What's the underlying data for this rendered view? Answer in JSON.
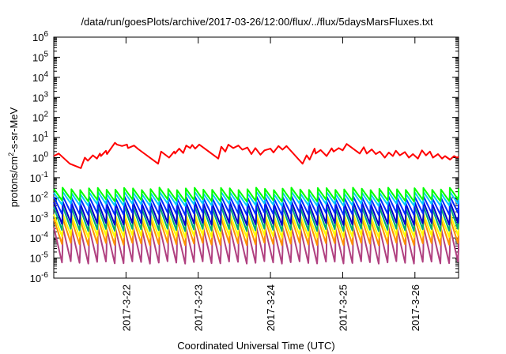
{
  "chart_data": {
    "type": "line",
    "title": "/data/run/goesPlots/archive/2017-03-26/12:00/flux/../flux/5daysMarsFluxes.txt",
    "xlabel": "Coordinated Universal Time (UTC)",
    "ylabel_main": "protons/cm",
    "ylabel_sup": "2",
    "ylabel_rest": "-s-sr-MeV",
    "yscale": "log",
    "ylim": [
      1e-06,
      1000000.0
    ],
    "xlim": [
      "2017-03-21 00:00",
      "2017-03-26 14:30"
    ],
    "x_ticks": [
      {
        "label": "2017-3-22",
        "x": "2017-03-22 00:00"
      },
      {
        "label": "2017-3-23",
        "x": "2017-03-23 00:00"
      },
      {
        "label": "2017-3-24",
        "x": "2017-03-24 00:00"
      },
      {
        "label": "2017-3-25",
        "x": "2017-03-25 00:00"
      },
      {
        "label": "2017-3-26",
        "x": "2017-03-26 00:00"
      }
    ],
    "y_ticks": [
      {
        "base": "10",
        "exp": "6",
        "value": 1000000.0
      },
      {
        "base": "10",
        "exp": "5",
        "value": 100000.0
      },
      {
        "base": "10",
        "exp": "4",
        "value": 10000.0
      },
      {
        "base": "10",
        "exp": "3",
        "value": 1000.0
      },
      {
        "base": "10",
        "exp": "2",
        "value": 100.0
      },
      {
        "base": "10",
        "exp": "1",
        "value": 10.0
      },
      {
        "base": "10",
        "exp": "0",
        "value": 1.0
      },
      {
        "base": "10",
        "exp": "-1",
        "value": 0.1
      },
      {
        "base": "10",
        "exp": "-2",
        "value": 0.01
      },
      {
        "base": "10",
        "exp": "-3",
        "value": 0.001
      },
      {
        "base": "10",
        "exp": "-4",
        "value": 0.0001
      },
      {
        "base": "10",
        "exp": "-5",
        "value": 1e-05
      },
      {
        "base": "10",
        "exp": "-6",
        "value": 1e-06
      }
    ],
    "grid": false,
    "legend": "none",
    "series": [
      {
        "color": "#ff0000",
        "x": [
          "2017-03-21 00:00",
          "2017-03-21 01:40",
          "2017-03-21 05:20",
          "2017-03-21 09:00",
          "2017-03-21 10:20",
          "2017-03-21 11:20",
          "2017-03-21 13:00",
          "2017-03-21 14:20",
          "2017-03-21 15:20",
          "2017-03-21 15:40",
          "2017-03-21 17:20",
          "2017-03-21 17:40",
          "2017-03-21 20:20",
          "2017-03-21 21:00",
          "2017-03-21 22:40",
          "2017-03-22 00:20",
          "2017-03-22 00:40",
          "2017-03-22 02:40",
          "2017-03-22 04:00",
          "2017-03-22 10:40",
          "2017-03-22 11:40",
          "2017-03-22 14:20",
          "2017-03-22 16:00",
          "2017-03-22 16:20",
          "2017-03-22 17:40",
          "2017-03-22 19:00",
          "2017-03-22 20:00",
          "2017-03-22 21:20",
          "2017-03-22 22:00",
          "2017-03-22 23:00",
          "2017-03-23 00:20",
          "2017-03-23 06:40",
          "2017-03-23 07:40",
          "2017-03-23 09:00",
          "2017-03-23 10:00",
          "2017-03-23 11:40",
          "2017-03-23 13:20",
          "2017-03-23 14:40",
          "2017-03-23 16:20",
          "2017-03-23 17:40",
          "2017-03-23 19:00",
          "2017-03-23 20:40",
          "2017-03-23 22:00",
          "2017-03-24 00:00",
          "2017-03-24 01:00",
          "2017-03-24 02:40",
          "2017-03-24 04:00",
          "2017-03-24 05:20",
          "2017-03-24 06:20",
          "2017-03-24 10:40",
          "2017-03-24 12:00",
          "2017-03-24 13:00",
          "2017-03-24 14:40",
          "2017-03-24 15:00",
          "2017-03-24 16:40",
          "2017-03-24 18:40",
          "2017-03-24 20:20",
          "2017-03-24 21:00",
          "2017-03-24 22:40",
          "2017-03-25 00:00",
          "2017-03-25 01:20",
          "2017-03-25 05:40",
          "2017-03-25 07:00",
          "2017-03-25 08:00",
          "2017-03-25 09:40",
          "2017-03-25 11:00",
          "2017-03-25 12:20",
          "2017-03-25 14:00",
          "2017-03-25 15:20",
          "2017-03-25 16:40",
          "2017-03-25 17:40",
          "2017-03-25 19:00",
          "2017-03-25 20:40",
          "2017-03-25 22:00",
          "2017-03-25 23:20",
          "2017-03-26 01:00",
          "2017-03-26 02:20",
          "2017-03-26 03:40",
          "2017-03-26 05:00",
          "2017-03-26 06:00",
          "2017-03-26 07:40",
          "2017-03-26 09:00",
          "2017-03-26 10:00",
          "2017-03-26 11:40",
          "2017-03-26 13:00",
          "2017-03-26 14:00",
          "2017-03-26 14:30"
        ],
        "y": [
          1.2,
          1.6,
          0.5,
          0.3,
          1.0,
          0.7,
          1.3,
          0.9,
          1.6,
          1.2,
          2.2,
          1.5,
          5.5,
          4.5,
          3.8,
          4.5,
          3.0,
          4.0,
          2.7,
          0.5,
          2.0,
          1.0,
          2.0,
          1.6,
          2.8,
          1.7,
          4.0,
          3.0,
          4.3,
          2.8,
          4.5,
          0.9,
          3.5,
          2.0,
          4.4,
          3.0,
          4.0,
          2.5,
          3.2,
          1.5,
          3.0,
          1.4,
          2.3,
          2.8,
          1.8,
          3.8,
          2.5,
          3.8,
          2.6,
          0.5,
          1.3,
          0.8,
          2.8,
          1.6,
          2.4,
          1.2,
          2.9,
          2.0,
          3.0,
          2.3,
          4.8,
          1.6,
          3.3,
          1.6,
          2.6,
          1.5,
          2.0,
          1.0,
          1.8,
          1.2,
          2.2,
          1.3,
          1.9,
          1.0,
          1.5,
          0.9,
          2.3,
          1.3,
          2.0,
          1.0,
          1.5,
          0.9,
          1.2,
          0.8,
          1.2,
          1.0,
          1.1
        ]
      }
    ],
    "periodic_series": [
      {
        "color": "#00ff00",
        "peak": 0.028,
        "trough": 0.0075
      },
      {
        "color": "#00c8ff",
        "peak": 0.018,
        "trough": 0.0045
      },
      {
        "color": "#0028ff",
        "peak": 0.011,
        "trough": 0.0016
      },
      {
        "color": "#0000cc",
        "peak": 0.006,
        "trough": 0.0005
      },
      {
        "color": "#00a878",
        "peak": 0.0035,
        "trough": 0.00025
      },
      {
        "color": "#ffff00",
        "peak": 0.0015,
        "trough": 0.00012
      },
      {
        "color": "#ff9000",
        "peak": 0.0009,
        "trough": 5e-05
      },
      {
        "color": "#b04080",
        "peak": 0.00035,
        "trough": 6e-06
      }
    ],
    "periodic_count": 46
  }
}
